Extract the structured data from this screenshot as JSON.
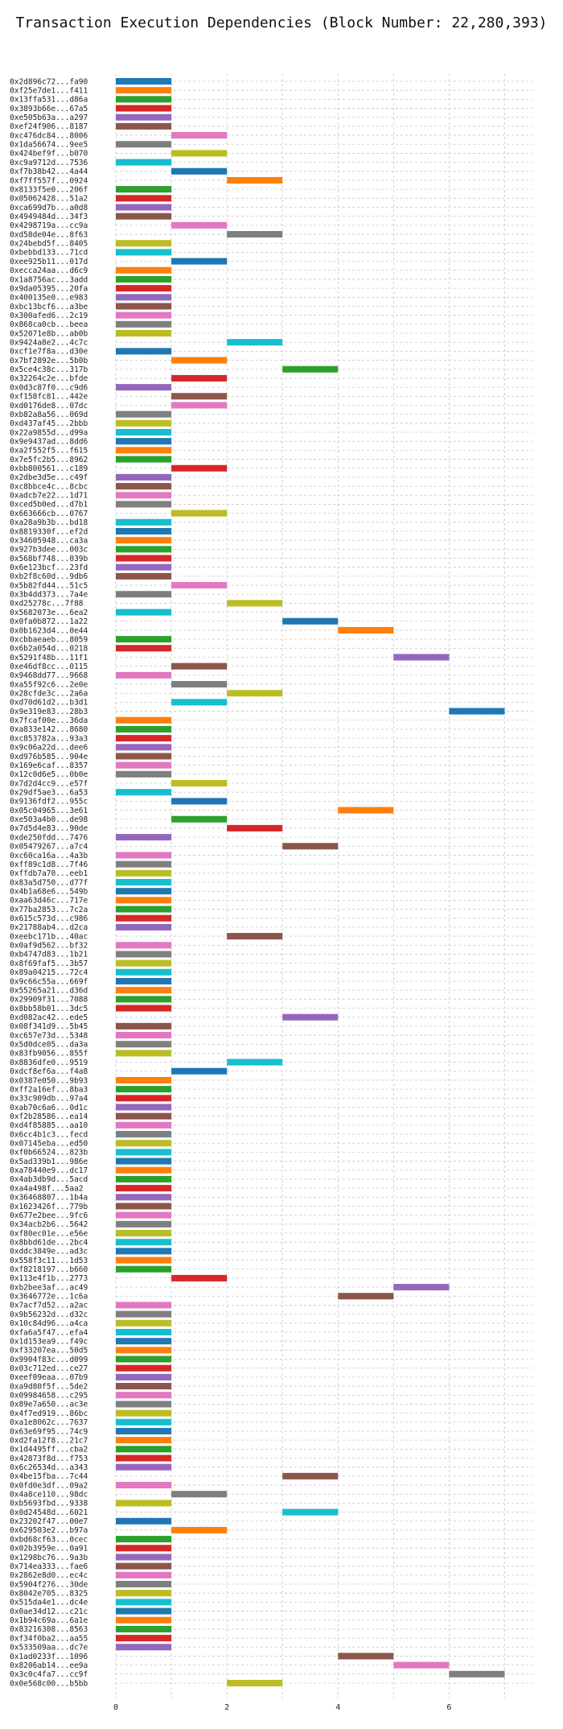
{
  "chart_data": {
    "type": "bar",
    "orientation": "horizontal",
    "title": "Transaction Execution Dependencies (Block Number: 22,280,393)",
    "xlabel": "",
    "ylabel": "",
    "xlim": [
      0,
      7.5
    ],
    "xticks": [
      0,
      2,
      4,
      6
    ],
    "grid": "dashed",
    "palette": [
      "#1f77b4",
      "#ff7f0e",
      "#2ca02c",
      "#d62728",
      "#9467bd",
      "#8c564b",
      "#e377c2",
      "#7f7f7f",
      "#bcbd22",
      "#17becf"
    ],
    "transactions": [
      {
        "label": "0x2d896c72...fa90",
        "start": 0,
        "end": 1
      },
      {
        "label": "0xf25e7de1...f411",
        "start": 0,
        "end": 1
      },
      {
        "label": "0x13ffa531...d86a",
        "start": 0,
        "end": 1
      },
      {
        "label": "0x3893b66e...67a5",
        "start": 0,
        "end": 1
      },
      {
        "label": "0xe505b63a...a297",
        "start": 0,
        "end": 1
      },
      {
        "label": "0xef24f906...8187",
        "start": 0,
        "end": 1
      },
      {
        "label": "0xc476dc84...8006",
        "start": 1,
        "end": 2
      },
      {
        "label": "0x1da56674...9ee5",
        "start": 0,
        "end": 1
      },
      {
        "label": "0x424bef9f...b070",
        "start": 1,
        "end": 2
      },
      {
        "label": "0xc9a9712d...7536",
        "start": 0,
        "end": 1
      },
      {
        "label": "0xf7b38b42...4a44",
        "start": 1,
        "end": 2
      },
      {
        "label": "0xf7ff557f...0924",
        "start": 2,
        "end": 3
      },
      {
        "label": "0x8133f5e0...206f",
        "start": 0,
        "end": 1
      },
      {
        "label": "0x05062428...51a2",
        "start": 0,
        "end": 1
      },
      {
        "label": "0xca699d7b...a0d8",
        "start": 0,
        "end": 1
      },
      {
        "label": "0x4949484d...34f3",
        "start": 0,
        "end": 1
      },
      {
        "label": "0x4298719a...cc9a",
        "start": 1,
        "end": 2
      },
      {
        "label": "0xd58de04e...8f63",
        "start": 2,
        "end": 3
      },
      {
        "label": "0x24bebd5f...8405",
        "start": 0,
        "end": 1
      },
      {
        "label": "0xbebbd133...71cd",
        "start": 0,
        "end": 1
      },
      {
        "label": "0xee925b11...017d",
        "start": 1,
        "end": 2
      },
      {
        "label": "0xecca24aa...d6c9",
        "start": 0,
        "end": 1
      },
      {
        "label": "0x1a8756ac...3add",
        "start": 0,
        "end": 1
      },
      {
        "label": "0x9da05395...20fa",
        "start": 0,
        "end": 1
      },
      {
        "label": "0x400135e0...e983",
        "start": 0,
        "end": 1
      },
      {
        "label": "0xbc13bcf6...a3be",
        "start": 0,
        "end": 1
      },
      {
        "label": "0x300afed6...2c19",
        "start": 0,
        "end": 1
      },
      {
        "label": "0x868ca0cb...beea",
        "start": 0,
        "end": 1
      },
      {
        "label": "0x52071e8b...ab0b",
        "start": 0,
        "end": 1
      },
      {
        "label": "0x9424a8e2...4c7c",
        "start": 2,
        "end": 3
      },
      {
        "label": "0xcf1e7f8a...d30e",
        "start": 0,
        "end": 1
      },
      {
        "label": "0x7bf2892e...5b0b",
        "start": 1,
        "end": 2
      },
      {
        "label": "0x5ce4c38c...317b",
        "start": 3,
        "end": 4
      },
      {
        "label": "0x32264c2e...bfde",
        "start": 1,
        "end": 2
      },
      {
        "label": "0x0d3c87f0...c9d6",
        "start": 0,
        "end": 1
      },
      {
        "label": "0xf158fc81...442e",
        "start": 1,
        "end": 2
      },
      {
        "label": "0xd0176de8...07dc",
        "start": 1,
        "end": 2
      },
      {
        "label": "0xb82a8a56...069d",
        "start": 0,
        "end": 1
      },
      {
        "label": "0xd437af45...2bbb",
        "start": 0,
        "end": 1
      },
      {
        "label": "0x22a9855d...d99a",
        "start": 0,
        "end": 1
      },
      {
        "label": "0x9e9437ad...8dd6",
        "start": 0,
        "end": 1
      },
      {
        "label": "0xa2f552f5...f615",
        "start": 0,
        "end": 1
      },
      {
        "label": "0x7e5fc2b5...8962",
        "start": 0,
        "end": 1
      },
      {
        "label": "0xbb800561...c189",
        "start": 1,
        "end": 2
      },
      {
        "label": "0x2dbe3d5e...c49f",
        "start": 0,
        "end": 1
      },
      {
        "label": "0xc8bbce4c...8cbc",
        "start": 0,
        "end": 1
      },
      {
        "label": "0xadcb7e22...1d71",
        "start": 0,
        "end": 1
      },
      {
        "label": "0xced5b0ed...d7b1",
        "start": 0,
        "end": 1
      },
      {
        "label": "0x663666cb...0767",
        "start": 1,
        "end": 2
      },
      {
        "label": "0xa28a9b3b...bd18",
        "start": 0,
        "end": 1
      },
      {
        "label": "0x8819330f...ef2d",
        "start": 0,
        "end": 1
      },
      {
        "label": "0x34605948...ca3a",
        "start": 0,
        "end": 1
      },
      {
        "label": "0x927b3dee...003c",
        "start": 0,
        "end": 1
      },
      {
        "label": "0x568bf748...039b",
        "start": 0,
        "end": 1
      },
      {
        "label": "0x6e123bcf...23fd",
        "start": 0,
        "end": 1
      },
      {
        "label": "0xb2f8c60d...9db6",
        "start": 0,
        "end": 1
      },
      {
        "label": "0x5b82fd44...51c5",
        "start": 1,
        "end": 2
      },
      {
        "label": "0x3b4dd373...7a4e",
        "start": 0,
        "end": 1
      },
      {
        "label": "0xd25278c...7f88",
        "start": 2,
        "end": 3
      },
      {
        "label": "0x5682073e...6ea2",
        "start": 0,
        "end": 1
      },
      {
        "label": "0x0fa0b872...1a22",
        "start": 3,
        "end": 4
      },
      {
        "label": "0x0b1623d4...0e44",
        "start": 4,
        "end": 5
      },
      {
        "label": "0xcbbaeaeb...8059",
        "start": 0,
        "end": 1
      },
      {
        "label": "0x6b2a054d...0218",
        "start": 0,
        "end": 1
      },
      {
        "label": "0x5291f48b...11f1",
        "start": 5,
        "end": 6
      },
      {
        "label": "0xe46df8cc...0115",
        "start": 1,
        "end": 2
      },
      {
        "label": "0x9468dd77...9668",
        "start": 0,
        "end": 1
      },
      {
        "label": "0xa55f92c6...2e0e",
        "start": 1,
        "end": 2
      },
      {
        "label": "0x28cfde3c...2a6a",
        "start": 2,
        "end": 3
      },
      {
        "label": "0xd70d61d2...b3d1",
        "start": 1,
        "end": 2
      },
      {
        "label": "0x9e319e83...28b3",
        "start": 6,
        "end": 7
      },
      {
        "label": "0x7fcaf00e...36da",
        "start": 0,
        "end": 1
      },
      {
        "label": "0xa833e142...8680",
        "start": 0,
        "end": 1
      },
      {
        "label": "0xc853782a...93a3",
        "start": 0,
        "end": 1
      },
      {
        "label": "0x9c06a22d...dee6",
        "start": 0,
        "end": 1
      },
      {
        "label": "0xd976b585...904e",
        "start": 0,
        "end": 1
      },
      {
        "label": "0x169e6caf...8357",
        "start": 0,
        "end": 1
      },
      {
        "label": "0x12c0d6e5...0b0e",
        "start": 0,
        "end": 1
      },
      {
        "label": "0x7d2d4cc9...e57f",
        "start": 1,
        "end": 2
      },
      {
        "label": "0x29df5ae3...6a53",
        "start": 0,
        "end": 1
      },
      {
        "label": "0x9136fdf2...955c",
        "start": 1,
        "end": 2
      },
      {
        "label": "0x05c04965...3e61",
        "start": 4,
        "end": 5
      },
      {
        "label": "0xe503a4b0...de98",
        "start": 1,
        "end": 2
      },
      {
        "label": "0x7d5d4e83...90de",
        "start": 2,
        "end": 3
      },
      {
        "label": "0xde250fdd...7476",
        "start": 0,
        "end": 1
      },
      {
        "label": "0x05479267...a7c4",
        "start": 3,
        "end": 4
      },
      {
        "label": "0xc60ca16a...4a3b",
        "start": 0,
        "end": 1
      },
      {
        "label": "0xff89c1d8...7f46",
        "start": 0,
        "end": 1
      },
      {
        "label": "0xffdb7a70...eeb1",
        "start": 0,
        "end": 1
      },
      {
        "label": "0x83a5d750...d77f",
        "start": 0,
        "end": 1
      },
      {
        "label": "0x4b1a68e6...549b",
        "start": 0,
        "end": 1
      },
      {
        "label": "0xaa63d46c...717e",
        "start": 0,
        "end": 1
      },
      {
        "label": "0x77ba2853...7c2a",
        "start": 0,
        "end": 1
      },
      {
        "label": "0x615c573d...c986",
        "start": 0,
        "end": 1
      },
      {
        "label": "0x21788ab4...d2ca",
        "start": 0,
        "end": 1
      },
      {
        "label": "0xeebc171b...40ac",
        "start": 2,
        "end": 3
      },
      {
        "label": "0x0af9d562...bf32",
        "start": 0,
        "end": 1
      },
      {
        "label": "0xb4747d83...1b21",
        "start": 0,
        "end": 1
      },
      {
        "label": "0x8f69faf5...3b57",
        "start": 0,
        "end": 1
      },
      {
        "label": "0x89a04215...72c4",
        "start": 0,
        "end": 1
      },
      {
        "label": "0x9c66c55a...669f",
        "start": 0,
        "end": 1
      },
      {
        "label": "0x55265a21...d36d",
        "start": 0,
        "end": 1
      },
      {
        "label": "0x29909f31...7088",
        "start": 0,
        "end": 1
      },
      {
        "label": "0x8bb58b01...3dc5",
        "start": 0,
        "end": 1
      },
      {
        "label": "0xd082ac42...ede5",
        "start": 3,
        "end": 4
      },
      {
        "label": "0x08f341d9...5b45",
        "start": 0,
        "end": 1
      },
      {
        "label": "0xc657e73d...5348",
        "start": 0,
        "end": 1
      },
      {
        "label": "0x5d0dce05...da3a",
        "start": 0,
        "end": 1
      },
      {
        "label": "0x83fb9056...855f",
        "start": 0,
        "end": 1
      },
      {
        "label": "0x8836dfe0...9519",
        "start": 2,
        "end": 3
      },
      {
        "label": "0xdcf8ef6a...f4a8",
        "start": 1,
        "end": 2
      },
      {
        "label": "0x0387e050...9b93",
        "start": 0,
        "end": 1
      },
      {
        "label": "0xff2a16ef...8ba3",
        "start": 0,
        "end": 1
      },
      {
        "label": "0x33c909db...97a4",
        "start": 0,
        "end": 1
      },
      {
        "label": "0xab70c6a6...0d1c",
        "start": 0,
        "end": 1
      },
      {
        "label": "0xf2b28586...ea14",
        "start": 0,
        "end": 1
      },
      {
        "label": "0xd4f85885...aa10",
        "start": 0,
        "end": 1
      },
      {
        "label": "0x6cc4b1c3...fecd",
        "start": 0,
        "end": 1
      },
      {
        "label": "0x07145eba...ed50",
        "start": 0,
        "end": 1
      },
      {
        "label": "0xf0b66524...823b",
        "start": 0,
        "end": 1
      },
      {
        "label": "0x5ad339b1...986e",
        "start": 0,
        "end": 1
      },
      {
        "label": "0xa78440e9...dc17",
        "start": 0,
        "end": 1
      },
      {
        "label": "0x4ab3db9d...5acd",
        "start": 0,
        "end": 1
      },
      {
        "label": "0xa4a498f...5aa2",
        "start": 0,
        "end": 1
      },
      {
        "label": "0x36468807...1b4a",
        "start": 0,
        "end": 1
      },
      {
        "label": "0x1623426f...779b",
        "start": 0,
        "end": 1
      },
      {
        "label": "0x677e2bee...9fc6",
        "start": 0,
        "end": 1
      },
      {
        "label": "0x34acb2b6...5642",
        "start": 0,
        "end": 1
      },
      {
        "label": "0xf80ec01e...e56e",
        "start": 0,
        "end": 1
      },
      {
        "label": "0x8bbd61de...2bc4",
        "start": 0,
        "end": 1
      },
      {
        "label": "0xddc3849e...ad3c",
        "start": 0,
        "end": 1
      },
      {
        "label": "0x558f3c11...1d53",
        "start": 0,
        "end": 1
      },
      {
        "label": "0xf8218197...b660",
        "start": 0,
        "end": 1
      },
      {
        "label": "0x113e4f1b...2773",
        "start": 1,
        "end": 2
      },
      {
        "label": "0xb2bee3af...ac49",
        "start": 5,
        "end": 6
      },
      {
        "label": "0x3646772e...1c6a",
        "start": 4,
        "end": 5
      },
      {
        "label": "0x7acf7d52...a2ac",
        "start": 0,
        "end": 1
      },
      {
        "label": "0x9b56232d...d32c",
        "start": 0,
        "end": 1
      },
      {
        "label": "0x10c84d96...a4ca",
        "start": 0,
        "end": 1
      },
      {
        "label": "0xfa6a5f47...efa4",
        "start": 0,
        "end": 1
      },
      {
        "label": "0x1d153ea9...f49c",
        "start": 0,
        "end": 1
      },
      {
        "label": "0xf33207ea...50d5",
        "start": 0,
        "end": 1
      },
      {
        "label": "0x9904f83c...d099",
        "start": 0,
        "end": 1
      },
      {
        "label": "0x03c712ed...ce27",
        "start": 0,
        "end": 1
      },
      {
        "label": "0xeef09eaa...07b9",
        "start": 0,
        "end": 1
      },
      {
        "label": "0xa9d80f5f...5de2",
        "start": 0,
        "end": 1
      },
      {
        "label": "0x09984658...c295",
        "start": 0,
        "end": 1
      },
      {
        "label": "0x89e7a650...ac3e",
        "start": 0,
        "end": 1
      },
      {
        "label": "0x4f7ed919...86bc",
        "start": 0,
        "end": 1
      },
      {
        "label": "0xa1e8062c...7637",
        "start": 0,
        "end": 1
      },
      {
        "label": "0x63e69f95...74c9",
        "start": 0,
        "end": 1
      },
      {
        "label": "0xd2fa12f8...21c7",
        "start": 0,
        "end": 1
      },
      {
        "label": "0x1d4495ff...cba2",
        "start": 0,
        "end": 1
      },
      {
        "label": "0x42873f8d...f753",
        "start": 0,
        "end": 1
      },
      {
        "label": "0x6c26534d...a343",
        "start": 0,
        "end": 1
      },
      {
        "label": "0x4be15fba...7c44",
        "start": 3,
        "end": 4
      },
      {
        "label": "0x0fd0e3df...09a2",
        "start": 0,
        "end": 1
      },
      {
        "label": "0x4a8ce110...98dc",
        "start": 1,
        "end": 2
      },
      {
        "label": "0xb5693fbd...9338",
        "start": 0,
        "end": 1
      },
      {
        "label": "0x0d24548d...6021",
        "start": 3,
        "end": 4
      },
      {
        "label": "0x23202f47...00e7",
        "start": 0,
        "end": 1
      },
      {
        "label": "0x629503e2...b97a",
        "start": 1,
        "end": 2
      },
      {
        "label": "0xbd68cf63...0cec",
        "start": 0,
        "end": 1
      },
      {
        "label": "0x02b3959e...0a91",
        "start": 0,
        "end": 1
      },
      {
        "label": "0x1298bc76...9a3b",
        "start": 0,
        "end": 1
      },
      {
        "label": "0x714ea333...fae6",
        "start": 0,
        "end": 1
      },
      {
        "label": "0x2862e8d0...ec4c",
        "start": 0,
        "end": 1
      },
      {
        "label": "0x5904f276...30de",
        "start": 0,
        "end": 1
      },
      {
        "label": "0x8042e705...8325",
        "start": 0,
        "end": 1
      },
      {
        "label": "0x515da4e1...dc4e",
        "start": 0,
        "end": 1
      },
      {
        "label": "0x0ae34d12...c21c",
        "start": 0,
        "end": 1
      },
      {
        "label": "0x1b94c69a...6a1e",
        "start": 0,
        "end": 1
      },
      {
        "label": "0x83216308...8563",
        "start": 0,
        "end": 1
      },
      {
        "label": "0xf34f0ba2...aa55",
        "start": 0,
        "end": 1
      },
      {
        "label": "0x533509aa...dc7e",
        "start": 0,
        "end": 1
      },
      {
        "label": "0x1ad0233f...1096",
        "start": 4,
        "end": 5
      },
      {
        "label": "0x8206ab14...ee9a",
        "start": 5,
        "end": 6
      },
      {
        "label": "0x3c0c4fa7...cc9f",
        "start": 6,
        "end": 7
      },
      {
        "label": "0x0e568c00...b5bb",
        "start": 2,
        "end": 3
      }
    ]
  }
}
